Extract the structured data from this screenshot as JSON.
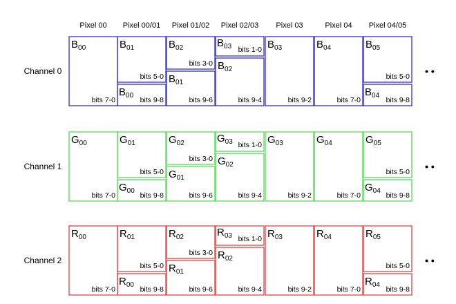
{
  "pixel_headers": [
    "Pixel 00",
    "Pixel 00/01",
    "Pixel 01/02",
    "Pixel 02/03",
    "Pixel 03",
    "Pixel 04",
    "Pixel 04/05"
  ],
  "channels": [
    {
      "label": "Channel 0",
      "letter": "B",
      "color": "#3333cc",
      "columns": [
        [
          {
            "sym": "B",
            "sub": "00",
            "bits": "bits 7-0"
          }
        ],
        [
          {
            "sym": "B",
            "sub": "01",
            "bits": "bits 5-0"
          },
          {
            "sym": "B",
            "sub": "00",
            "bits": "bits 9-8"
          }
        ],
        [
          {
            "sym": "B",
            "sub": "02",
            "bits": "bits 3-0"
          },
          {
            "sym": "B",
            "sub": "01",
            "bits": "bits 9-6"
          }
        ],
        [
          {
            "sym": "B",
            "sub": "03",
            "bits": "bits 1-0"
          },
          {
            "sym": "B",
            "sub": "02",
            "bits": "bits 9-4"
          }
        ],
        [
          {
            "sym": "B",
            "sub": "03",
            "bits": "bits 9-2"
          }
        ],
        [
          {
            "sym": "B",
            "sub": "04",
            "bits": "bits 7-0"
          }
        ],
        [
          {
            "sym": "B",
            "sub": "05",
            "bits": "bits 5-0"
          },
          {
            "sym": "B",
            "sub": "04",
            "bits": "bits 9-8"
          }
        ]
      ]
    },
    {
      "label": "Channel 1",
      "letter": "G",
      "color": "#55dd55",
      "columns": [
        [
          {
            "sym": "G",
            "sub": "00",
            "bits": "bits 7-0"
          }
        ],
        [
          {
            "sym": "G",
            "sub": "01",
            "bits": "bits 5-0"
          },
          {
            "sym": "G",
            "sub": "00",
            "bits": "bits 9-8"
          }
        ],
        [
          {
            "sym": "G",
            "sub": "02",
            "bits": "bits 3-0"
          },
          {
            "sym": "G",
            "sub": "01",
            "bits": "bits 9-6"
          }
        ],
        [
          {
            "sym": "G",
            "sub": "03",
            "bits": "bits 1-0"
          },
          {
            "sym": "G",
            "sub": "02",
            "bits": "bits 9-4"
          }
        ],
        [
          {
            "sym": "G",
            "sub": "03",
            "bits": "bits 9-2"
          }
        ],
        [
          {
            "sym": "G",
            "sub": "04",
            "bits": "bits 7-0"
          }
        ],
        [
          {
            "sym": "G",
            "sub": "05",
            "bits": "bits 5-0"
          },
          {
            "sym": "G",
            "sub": "04",
            "bits": "bits 9-8"
          }
        ]
      ]
    },
    {
      "label": "Channel 2",
      "letter": "R",
      "color": "#dd4444",
      "columns": [
        [
          {
            "sym": "R",
            "sub": "00",
            "bits": "bits 7-0"
          }
        ],
        [
          {
            "sym": "R",
            "sub": "01",
            "bits": "bits 5-0"
          },
          {
            "sym": "R",
            "sub": "00",
            "bits": "bits 9-8"
          }
        ],
        [
          {
            "sym": "R",
            "sub": "02",
            "bits": "bits 3-0"
          },
          {
            "sym": "R",
            "sub": "01",
            "bits": "bits 9-6"
          }
        ],
        [
          {
            "sym": "R",
            "sub": "03",
            "bits": "bits 1-0"
          },
          {
            "sym": "R",
            "sub": "02",
            "bits": "bits 9-4"
          }
        ],
        [
          {
            "sym": "R",
            "sub": "03",
            "bits": "bits 9-2"
          }
        ],
        [
          {
            "sym": "R",
            "sub": "04",
            "bits": "bits 7-0"
          }
        ],
        [
          {
            "sym": "R",
            "sub": "05",
            "bits": "bits 5-0"
          },
          {
            "sym": "R",
            "sub": "04",
            "bits": "bits 9-8"
          }
        ]
      ]
    }
  ],
  "continuation": "• •"
}
